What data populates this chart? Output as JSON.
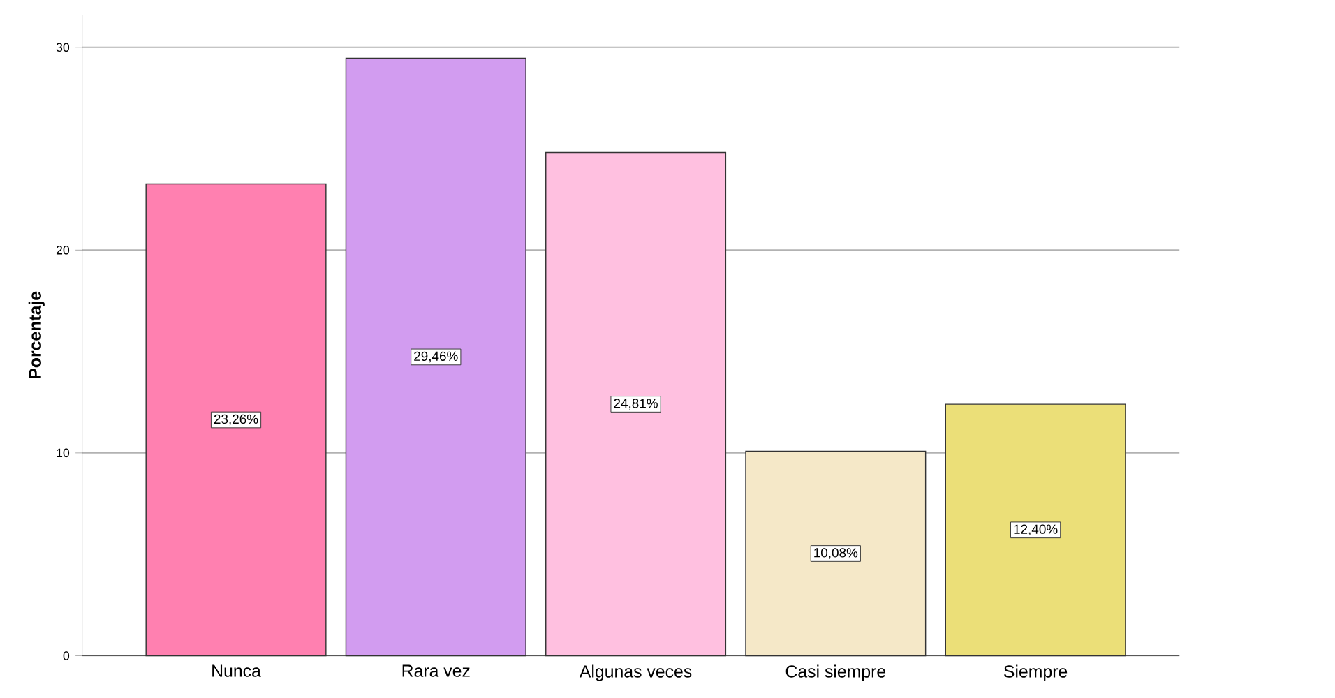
{
  "chart_data": {
    "type": "bar",
    "ylabel": "Porcentaje",
    "categories": [
      "Nunca",
      "Rara vez",
      "Algunas veces",
      "Casi siempre",
      "Siempre"
    ],
    "values": [
      23.26,
      29.46,
      24.81,
      10.08,
      12.4
    ],
    "value_labels": [
      "23,26%",
      "29,46%",
      "24,81%",
      "10,08%",
      "12,40%"
    ],
    "colors": [
      "#ff80b0",
      "#d29cf0",
      "#ffc0e0",
      "#f5e8c8",
      "#ebdf78"
    ],
    "ylim": [
      0,
      31.6
    ],
    "yticks": [
      0,
      10,
      20,
      30
    ],
    "grid": "y"
  }
}
